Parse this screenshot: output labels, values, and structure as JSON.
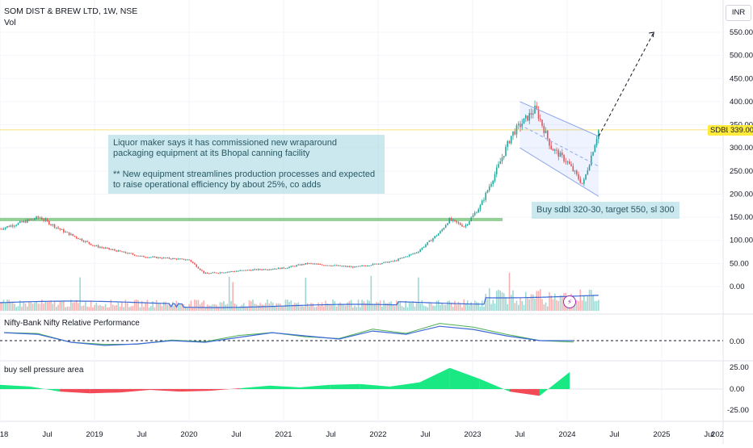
{
  "header": {
    "symbol_line": "SOM DIST & BREW LTD, 1W, NSE",
    "vol_label": "Vol",
    "currency": "INR"
  },
  "price_axis": {
    "ticks": [
      "550.00",
      "500.00",
      "450.00",
      "400.00",
      "350.00",
      "300.00",
      "250.00",
      "200.00",
      "150.00",
      "100.00",
      "50.00",
      "0.00"
    ],
    "last_symbol": "SDBL",
    "last_price": "339.00"
  },
  "x_axis": {
    "labels": [
      "18",
      "Jul",
      "2019",
      "Jul",
      "2020",
      "Jul",
      "2021",
      "Jul",
      "2022",
      "Jul",
      "2023",
      "Jul",
      "2024",
      "Jul",
      "2025",
      "Jul",
      "202"
    ]
  },
  "annotations": {
    "news": "Liquor maker says it has commissioned new wraparound packaging equipment at its Bhopal canning facility\n\n** New equipment streamlines production processes and expected to raise operational efficiency by about 25%, co adds",
    "trade": "Buy sdbl 320-30, target 550, sl 300"
  },
  "rel_perf": {
    "title": "Nifty-Bank Nifty Relative Performance",
    "tick": "0.00"
  },
  "pressure": {
    "title": "buy sell pressure area",
    "ticks": [
      "25.00",
      "0.00",
      "-25.00"
    ]
  },
  "colors": {
    "up": "#26a69a",
    "down": "#ef5350",
    "accent": "#2962ff",
    "ma": "#3d6ad6",
    "rel": "#4caf50",
    "support": "#81c784",
    "bull_area": "#00e676",
    "bear_area": "#f23645",
    "last_tag_bg": "#ffeb3b"
  },
  "chart_data": {
    "type": "candlestick",
    "timeframe": "1W",
    "symbol": "SOM DIST & BREW LTD",
    "exchange": "NSE",
    "x_start": "2018-01",
    "x_end": "2026-01",
    "ylim": [
      0,
      560
    ],
    "last_price": 339,
    "support_level": 145,
    "price_path": [
      {
        "x": "2018-01",
        "y": 125
      },
      {
        "x": "2018-06",
        "y": 150
      },
      {
        "x": "2018-09",
        "y": 120
      },
      {
        "x": "2019-01",
        "y": 88
      },
      {
        "x": "2019-07",
        "y": 65
      },
      {
        "x": "2020-01",
        "y": 58
      },
      {
        "x": "2020-03",
        "y": 28
      },
      {
        "x": "2020-08",
        "y": 35
      },
      {
        "x": "2021-01",
        "y": 40
      },
      {
        "x": "2021-04",
        "y": 50
      },
      {
        "x": "2021-10",
        "y": 42
      },
      {
        "x": "2022-03",
        "y": 55
      },
      {
        "x": "2022-06",
        "y": 75
      },
      {
        "x": "2022-09",
        "y": 120
      },
      {
        "x": "2022-10",
        "y": 145
      },
      {
        "x": "2022-12",
        "y": 130
      },
      {
        "x": "2023-02",
        "y": 175
      },
      {
        "x": "2023-04",
        "y": 250
      },
      {
        "x": "2023-06",
        "y": 330
      },
      {
        "x": "2023-09",
        "y": 385
      },
      {
        "x": "2023-11",
        "y": 300
      },
      {
        "x": "2024-01",
        "y": 270
      },
      {
        "x": "2024-03",
        "y": 220
      },
      {
        "x": "2024-05",
        "y": 339
      }
    ],
    "channel": {
      "upper": [
        {
          "x": "2023-07",
          "y": 400
        },
        {
          "x": "2024-05",
          "y": 325
        }
      ],
      "lower": [
        {
          "x": "2023-07",
          "y": 300
        },
        {
          "x": "2024-05",
          "y": 195
        }
      ]
    },
    "projection": [
      {
        "x": "2024-05",
        "y": 325
      },
      {
        "x": "2024-12",
        "y": 550
      }
    ],
    "relative_performance": {
      "points": [
        0.5,
        0.4,
        -0.1,
        -0.3,
        -0.2,
        0.0,
        -0.1,
        0.2,
        0.5,
        0.3,
        0.1,
        0.6,
        0.4,
        0.9,
        0.7,
        0.3,
        0.0,
        0.0
      ]
    },
    "buy_sell_pressure": {
      "ylim": [
        -30,
        30
      ],
      "points": [
        5,
        3,
        -3,
        -5,
        -4,
        -1,
        -3,
        -2,
        1,
        4,
        2,
        5,
        6,
        3,
        8,
        25,
        12,
        -3,
        -8,
        20
      ]
    }
  }
}
